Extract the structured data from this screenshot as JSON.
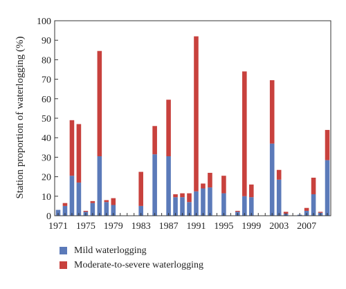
{
  "chart_data": {
    "type": "bar",
    "stacked": true,
    "ylabel": "Station proportion of waterlogging (%)",
    "xlabel": "",
    "ylim": [
      0,
      100
    ],
    "yticks": [
      0,
      10,
      20,
      30,
      40,
      50,
      60,
      70,
      80,
      90,
      100
    ],
    "xtick_labels": [
      "1971",
      "1975",
      "1979",
      "1983",
      "1987",
      "1991",
      "1995",
      "1999",
      "2003",
      "2007"
    ],
    "categories": [
      "1971",
      "1972",
      "1973",
      "1974",
      "1975",
      "1976",
      "1977",
      "1978",
      "1979",
      "1980",
      "1981",
      "1982",
      "1983",
      "1984",
      "1985",
      "1986",
      "1987",
      "1988",
      "1989",
      "1990",
      "1991",
      "1992",
      "1993",
      "1994",
      "1995",
      "1996",
      "1997",
      "1998",
      "1999",
      "2000",
      "2001",
      "2002",
      "2003",
      "2004",
      "2005",
      "2006",
      "2007",
      "2008",
      "2009",
      "2010"
    ],
    "series": [
      {
        "name": "Mild waterlogging",
        "color": "#5b7ab9",
        "values": [
          3,
          5,
          20.5,
          17,
          2,
          6.5,
          30.5,
          7,
          5.5,
          0,
          0,
          0,
          5,
          0,
          31.5,
          0,
          30.5,
          9.5,
          9.5,
          7,
          12.5,
          14,
          14.5,
          0,
          11.5,
          0,
          2,
          10,
          9.5,
          0,
          0,
          37,
          18.5,
          1,
          0,
          0.5,
          2.5,
          11,
          1.5,
          28.5
        ]
      },
      {
        "name": "Moderate-to-severe waterlogging",
        "color": "#c8413d",
        "values": [
          0,
          1.5,
          28.5,
          30,
          0.5,
          1,
          54,
          1,
          3.5,
          0,
          0,
          0,
          17.5,
          0,
          14.5,
          0,
          29,
          1.5,
          2,
          4.5,
          79.5,
          2.5,
          7.5,
          0,
          9,
          0,
          0.5,
          64,
          6.5,
          0,
          0,
          32.5,
          5,
          1,
          0,
          0,
          1.5,
          8.5,
          0.5,
          15.5
        ]
      }
    ],
    "legend_position": "bottom-left"
  }
}
